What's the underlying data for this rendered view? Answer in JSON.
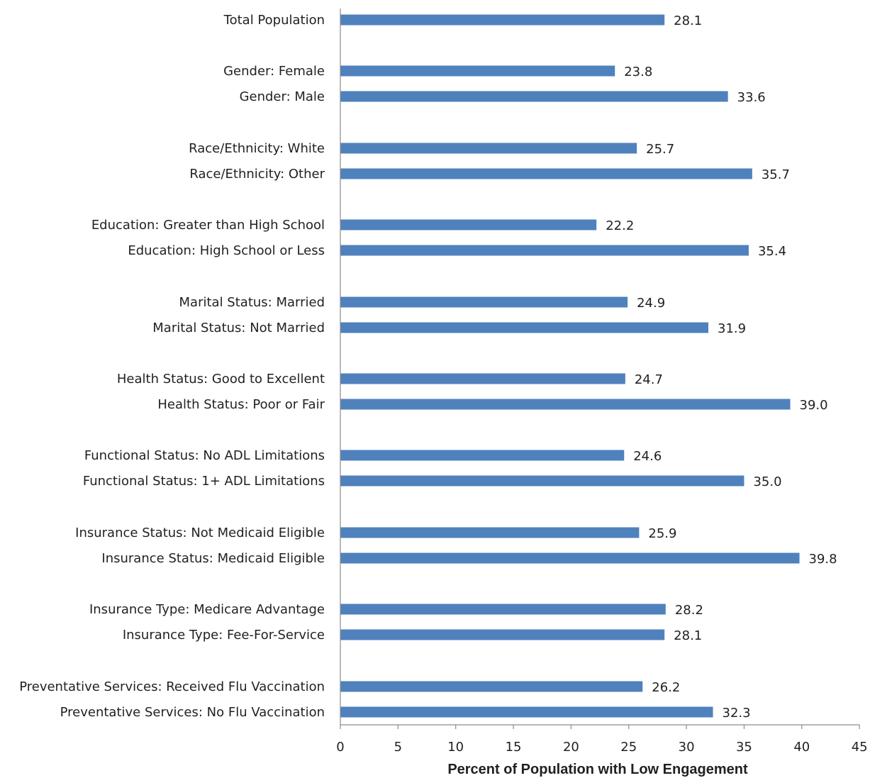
{
  "chart_data": {
    "type": "bar",
    "orientation": "horizontal",
    "categories": [
      "Total  Population",
      "Gender: Female",
      "Gender: Male",
      "Race/Ethnicity: White",
      "Race/Ethnicity: Other",
      "Education: Greater than High School",
      "Education: High School or Less",
      "Marital Status: Married",
      "Marital Status: Not Married",
      "Health Status: Good to Excellent",
      "Health Status: Poor or Fair",
      "Functional Status: No ADL Limitations",
      "Functional Status: 1+  ADL Limitations",
      "Insurance Status: Not Medicaid Eligible",
      "Insurance Status: Medicaid Eligible",
      "Insurance Type: Medicare Advantage",
      "Insurance Type: Fee-For-Service",
      "Preventative Services: Received Flu Vaccination",
      "Preventative Services: No Flu Vaccination"
    ],
    "values": [
      28.1,
      23.8,
      33.6,
      25.7,
      35.7,
      22.2,
      35.4,
      24.9,
      31.9,
      24.7,
      39.0,
      24.6,
      35.0,
      25.9,
      39.8,
      28.2,
      28.1,
      26.2,
      32.3
    ],
    "value_labels": [
      "28.1",
      "23.8",
      "33.6",
      "25.7",
      "35.7",
      "22.2",
      "35.4",
      "24.9",
      "31.9",
      "24.7",
      "39.0",
      "24.6",
      "35.0",
      "25.9",
      "39.8",
      "28.2",
      "28.1",
      "26.2",
      "32.3"
    ],
    "title": "",
    "xlabel": "Percent of Population with Low Engagement",
    "ylabel": "",
    "xlim": [
      0,
      45
    ],
    "xticks": [
      "0",
      "5",
      "10",
      "15",
      "20",
      "25",
      "30",
      "35",
      "40",
      "45"
    ],
    "grid": false,
    "legend": "none",
    "bar_color": "#4f81bd"
  }
}
